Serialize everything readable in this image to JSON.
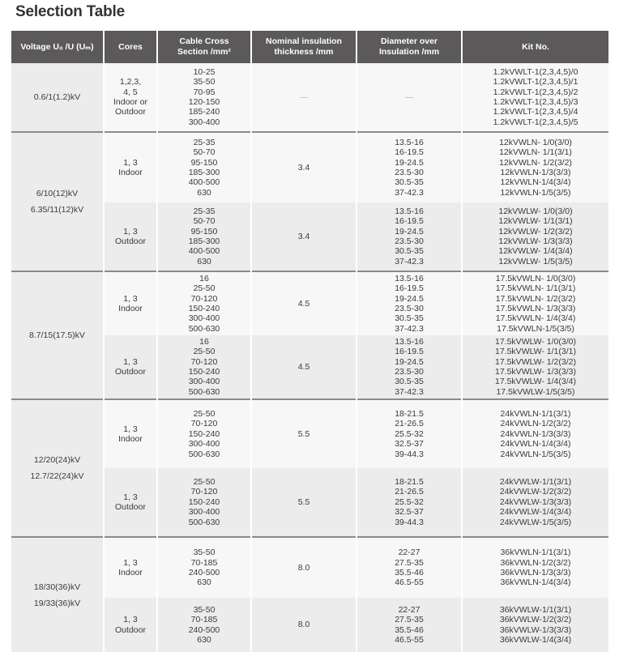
{
  "title": "Selection Table",
  "headers": {
    "voltage": "Voltage U₀ /U (Uₘ)",
    "cores": "Cores",
    "cross_section": "Cable Cross\nSection /mm²",
    "insulation": "Nominal insulation\nthickness /mm",
    "diameter": "Diameter over\nInsulation /mm",
    "kit": "Kit No."
  },
  "groups": [
    {
      "voltage": "0.6/1(1.2)kV",
      "rows": [
        {
          "cores": "1,2,3,\n4, 5\nIndoor or\nOutdoor",
          "cross_section": "10-25\n35-50\n70-95\n120-150\n185-240\n300-400",
          "insulation": "—",
          "diameter": "—",
          "kit": "1.2kVWLT-1(2,3,4,5)/0\n1.2kVWLT-1(2,3,4,5)/1\n1.2kVWLT-1(2,3,4,5)/2\n1.2kVWLT-1(2,3,4,5)/3\n1.2kVWLT-1(2,3,4,5)/4\n1.2kVWLT-1(2,3,4,5)/5"
        }
      ]
    },
    {
      "voltage": "6/10(12)kV\n6.35/11(12)kV",
      "rows": [
        {
          "cores": "1, 3\nIndoor",
          "cross_section": "25-35\n50-70\n95-150\n185-300\n400-500\n630",
          "insulation": "3.4",
          "diameter": "13.5-16\n16-19.5\n19-24.5\n23.5-30\n30.5-35\n37-42.3",
          "kit": "12kVWLN- 1/0(3/0)\n12kVWLN- 1/1(3/1)\n12kVWLN- 1/2(3/2)\n12kVWLN-1/3(3/3)\n12kVWLN-1/4(3/4)\n12kVWLN-1/5(3/5)"
        },
        {
          "cores": "1, 3\nOutdoor",
          "cross_section": "25-35\n50-70\n95-150\n185-300\n400-500\n630",
          "insulation": "3.4",
          "diameter": "13.5-16\n16-19.5\n19-24.5\n23.5-30\n30.5-35\n37-42.3",
          "kit": "12kVWLW- 1/0(3/0)\n12kVWLW- 1/1(3/1)\n12kVWLW- 1/2(3/2)\n12kVWLW- 1/3(3/3)\n12kVWLW- 1/4(3/4)\n12kVWLW- 1/5(3/5)"
        }
      ]
    },
    {
      "voltage": "8.7/15(17.5)kV",
      "rows": [
        {
          "cores": "1, 3\nIndoor",
          "cross_section": "16\n25-50\n70-120\n150-240\n300-400\n500-630",
          "insulation": "4.5",
          "diameter": "13.5-16\n16-19.5\n19-24.5\n23.5-30\n30.5-35\n37-42.3",
          "kit": "17.5kVWLN- 1/0(3/0)\n17.5kVWLN- 1/1(3/1)\n17.5kVWLN- 1/2(3/2)\n17.5kVWLN- 1/3(3/3)\n17.5kVWLN- 1/4(3/4)\n17.5kVWLN-1/5(3/5)"
        },
        {
          "cores": "1, 3\nOutdoor",
          "cross_section": "16\n25-50\n70-120\n150-240\n300-400\n500-630",
          "insulation": "4.5",
          "diameter": "13.5-16\n16-19.5\n19-24.5\n23.5-30\n30.5-35\n37-42.3",
          "kit": "17.5kVWLW- 1/0(3/0)\n17.5kVWLW- 1/1(3/1)\n17.5kVWLW- 1/2(3/2)\n17.5kVWLW- 1/3(3/3)\n17.5kVWLW- 1/4(3/4)\n17.5kVWLW-1/5(3/5)"
        }
      ]
    },
    {
      "voltage": "12/20(24)kV\n12.7/22(24)kV",
      "rows": [
        {
          "cores": "1, 3\nIndoor",
          "cross_section": "25-50\n70-120\n150-240\n300-400\n500-630",
          "insulation": "5.5",
          "diameter": "18-21.5\n21-26.5\n25.5-32\n32.5-37\n39-44.3",
          "kit": "24kVWLN-1/1(3/1)\n24kVWLN-1/2(3/2)\n24kVWLN-1/3(3/3)\n24kVWLN-1/4(3/4)\n24kVWLN-1/5(3/5)"
        },
        {
          "cores": "1, 3\nOutdoor",
          "cross_section": "25-50\n70-120\n150-240\n300-400\n500-630",
          "insulation": "5.5",
          "diameter": "18-21.5\n21-26.5\n25.5-32\n32.5-37\n39-44.3",
          "kit": "24kVWLW-1/1(3/1)\n24kVWLW-1/2(3/2)\n24kVWLW-1/3(3/3)\n24kVWLW-1/4(3/4)\n24kVWLW-1/5(3/5)"
        }
      ]
    },
    {
      "voltage": "18/30(36)kV\n19/33(36)kV",
      "rows": [
        {
          "cores": "1, 3\nIndoor",
          "cross_section": "35-50\n70-185\n240-500\n630",
          "insulation": "8.0",
          "diameter": "22-27\n27.5-35\n35.5-46\n46.5-55",
          "kit": "36kVWLN-1/1(3/1)\n36kVWLN-1/2(3/2)\n36kVWLN-1/3(3/3)\n36kVWLN-1/4(3/4)"
        },
        {
          "cores": "1, 3\nOutdoor",
          "cross_section": "35-50\n70-185\n240-500\n630",
          "insulation": "8.0",
          "diameter": "22-27\n27.5-35\n35.5-46\n46.5-55",
          "kit": "36kVWLW-1/1(3/1)\n36kVWLW-1/2(3/2)\n36kVWLW-1/3(3/3)\n36kVWLW-1/4(3/4)"
        }
      ]
    }
  ]
}
